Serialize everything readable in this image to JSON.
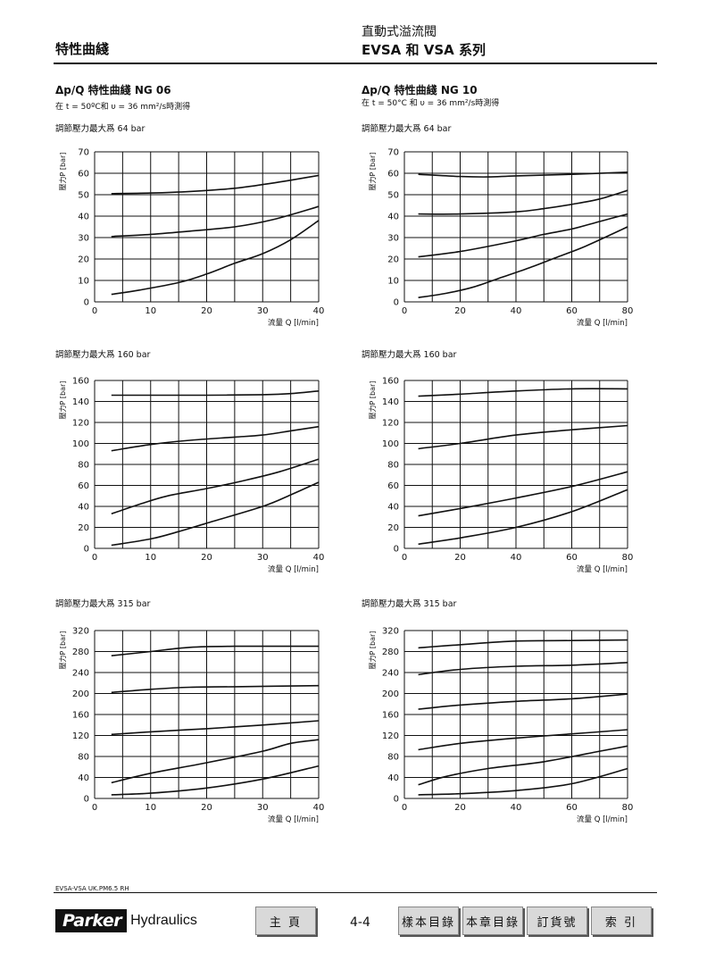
{
  "header": {
    "left_title": "特性曲綫",
    "right_title_line1": "直動式溢流閥",
    "right_title_line2": "EVSA 和 VSA 系列"
  },
  "columns": [
    {
      "title": "Δp/Q 特性曲綫 NG 06",
      "conditions": "在 t = 50ºC和 υ = 36 mm²/s時測得"
    },
    {
      "title": "Δp/Q 特性曲綫 NG 10",
      "conditions": "在 t = 50°C 和 υ = 36 mm²/s時測得"
    }
  ],
  "chart_data": [
    {
      "type": "line",
      "caption": "調節壓力最大爲 64 bar",
      "ylabel": "壓力P [bar]",
      "xlabel": "流量 Q [l/min]",
      "xlim": [
        0,
        40
      ],
      "ylim": [
        0,
        70
      ],
      "grid": true,
      "xticks": [
        0,
        10,
        20,
        30,
        40
      ],
      "yticks": [
        0,
        10,
        20,
        30,
        40,
        50,
        60,
        70
      ],
      "series": [
        {
          "x": [
            3,
            10,
            17,
            25,
            32,
            40
          ],
          "y": [
            50.5,
            50.8,
            51.5,
            53,
            55.5,
            59
          ]
        },
        {
          "x": [
            3,
            10,
            17,
            25,
            32,
            40
          ],
          "y": [
            30.5,
            31.5,
            33,
            35,
            38.5,
            44.5
          ]
        },
        {
          "x": [
            3,
            8,
            15,
            20,
            25,
            30,
            35,
            40
          ],
          "y": [
            3.5,
            5.5,
            9,
            13,
            18,
            22.5,
            29,
            38
          ]
        }
      ]
    },
    {
      "type": "line",
      "caption": "調節壓力最大爲 64 bar",
      "ylabel": "壓力P [bar]",
      "xlabel": "流量 Q [l/min]",
      "xlim": [
        0,
        80
      ],
      "ylim": [
        0,
        70
      ],
      "grid": true,
      "xticks": [
        0,
        20,
        40,
        60,
        80
      ],
      "yticks": [
        0,
        10,
        20,
        30,
        40,
        50,
        60,
        70
      ],
      "series": [
        {
          "x": [
            5,
            20,
            30,
            40,
            60,
            80
          ],
          "y": [
            59.5,
            58.5,
            58.3,
            58.8,
            59.5,
            60.5
          ]
        },
        {
          "x": [
            5,
            20,
            40,
            50,
            60,
            70,
            80
          ],
          "y": [
            41,
            41,
            42,
            43.5,
            45.5,
            48,
            52
          ]
        },
        {
          "x": [
            5,
            20,
            40,
            50,
            60,
            70,
            80
          ],
          "y": [
            21,
            23.5,
            28.5,
            31.5,
            34,
            37.5,
            41
          ]
        },
        {
          "x": [
            5,
            15,
            25,
            35,
            45,
            55,
            65,
            80
          ],
          "y": [
            2,
            4,
            7,
            11.5,
            16,
            21,
            26,
            35
          ]
        }
      ]
    },
    {
      "type": "line",
      "caption": "調節壓力最大爲 160 bar",
      "ylabel": "壓力P [bar]",
      "xlabel": "流量 Q [l/min]",
      "xlim": [
        0,
        40
      ],
      "ylim": [
        0,
        160
      ],
      "grid": true,
      "xticks": [
        0,
        10,
        20,
        30,
        40
      ],
      "yticks": [
        0,
        20,
        40,
        60,
        80,
        100,
        120,
        140,
        160
      ],
      "series": [
        {
          "x": [
            3,
            10,
            20,
            30,
            35,
            40
          ],
          "y": [
            146,
            146,
            146,
            146.5,
            147.5,
            150
          ]
        },
        {
          "x": [
            3,
            10,
            17,
            25,
            30,
            35,
            40
          ],
          "y": [
            93,
            99,
            103,
            106,
            108,
            112,
            116
          ]
        },
        {
          "x": [
            3,
            8,
            13,
            20,
            27,
            33,
            40
          ],
          "y": [
            33,
            42,
            50,
            57,
            65,
            73,
            85
          ]
        },
        {
          "x": [
            3,
            10,
            15,
            20,
            30,
            35,
            40
          ],
          "y": [
            3,
            9,
            16,
            24,
            40,
            51,
            63
          ]
        }
      ]
    },
    {
      "type": "line",
      "caption": "調節壓力最大爲 160 bar",
      "ylabel": "壓力P [bar]",
      "xlabel": "流量 Q [l/min]",
      "xlim": [
        0,
        80
      ],
      "ylim": [
        0,
        160
      ],
      "grid": true,
      "xticks": [
        0,
        20,
        40,
        60,
        80
      ],
      "yticks": [
        0,
        20,
        40,
        60,
        80,
        100,
        120,
        140,
        160
      ],
      "series": [
        {
          "x": [
            5,
            20,
            40,
            60,
            80
          ],
          "y": [
            145,
            147,
            150,
            152,
            152
          ]
        },
        {
          "x": [
            5,
            20,
            40,
            60,
            80
          ],
          "y": [
            95,
            100,
            108,
            113,
            117
          ]
        },
        {
          "x": [
            5,
            20,
            40,
            60,
            80
          ],
          "y": [
            31,
            38,
            48,
            59,
            73
          ]
        },
        {
          "x": [
            5,
            20,
            40,
            60,
            80
          ],
          "y": [
            4,
            10,
            20,
            35,
            56
          ]
        }
      ]
    },
    {
      "type": "line",
      "caption": "調節壓力最大爲 315 bar",
      "ylabel": "壓力P [bar]",
      "xlabel": "流量 Q [l/min]",
      "xlim": [
        0,
        40
      ],
      "ylim": [
        0,
        320
      ],
      "grid": true,
      "xticks": [
        0,
        10,
        20,
        30,
        40
      ],
      "yticks": [
        0,
        40,
        80,
        120,
        160,
        200,
        240,
        280,
        320
      ],
      "series": [
        {
          "x": [
            3,
            10,
            17,
            25,
            40
          ],
          "y": [
            272,
            280,
            288,
            290,
            290
          ]
        },
        {
          "x": [
            3,
            10,
            17,
            25,
            40
          ],
          "y": [
            202,
            208,
            212,
            213,
            215
          ]
        },
        {
          "x": [
            3,
            10,
            20,
            30,
            40
          ],
          "y": [
            122,
            127,
            133,
            140,
            148
          ]
        },
        {
          "x": [
            3,
            10,
            20,
            30,
            35,
            40
          ],
          "y": [
            30,
            48,
            68,
            90,
            105,
            112
          ]
        },
        {
          "x": [
            3,
            10,
            20,
            30,
            40
          ],
          "y": [
            7,
            10,
            20,
            37,
            62
          ]
        }
      ]
    },
    {
      "type": "line",
      "caption": "調節壓力最大爲 315 bar",
      "ylabel": "壓力P [bar]",
      "xlabel": "流量 Q [l/min]",
      "xlim": [
        0,
        80
      ],
      "ylim": [
        0,
        320
      ],
      "grid": true,
      "xticks": [
        0,
        20,
        40,
        60,
        80
      ],
      "yticks": [
        0,
        40,
        80,
        120,
        160,
        200,
        240,
        280,
        320
      ],
      "series": [
        {
          "x": [
            5,
            20,
            40,
            60,
            80
          ],
          "y": [
            287,
            293,
            300,
            301,
            302
          ]
        },
        {
          "x": [
            5,
            20,
            40,
            60,
            80
          ],
          "y": [
            236,
            246,
            252,
            254,
            259
          ]
        },
        {
          "x": [
            5,
            20,
            40,
            60,
            80
          ],
          "y": [
            170,
            178,
            185,
            190,
            199
          ]
        },
        {
          "x": [
            5,
            20,
            40,
            60,
            80
          ],
          "y": [
            93,
            105,
            115,
            123,
            131
          ]
        },
        {
          "x": [
            5,
            15,
            30,
            50,
            70,
            80
          ],
          "y": [
            26,
            42,
            57,
            70,
            90,
            100
          ]
        },
        {
          "x": [
            5,
            20,
            40,
            60,
            80
          ],
          "y": [
            7,
            9,
            15,
            28,
            57
          ]
        }
      ]
    }
  ],
  "footer": {
    "file_code": "EVSA-VSA UK.PM6.5 RH",
    "logo_mark": "Parker",
    "logo_text": "Hydraulics",
    "page_number": "4-4",
    "nav": {
      "home": "主 頁",
      "catalog": "樣本目錄",
      "chapter": "本章目錄",
      "order": "訂貨號",
      "index": "索 引"
    }
  }
}
